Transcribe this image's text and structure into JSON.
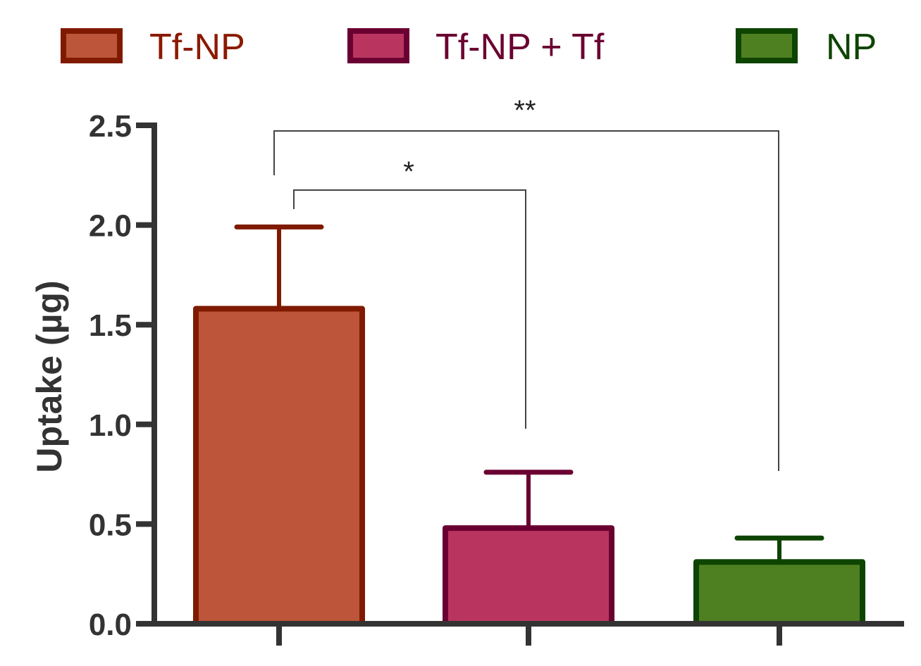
{
  "chart_data": {
    "type": "bar",
    "categories": [
      "Tf-NP",
      "Tf-NP + Tf",
      "NP"
    ],
    "values": [
      1.58,
      0.48,
      0.31
    ],
    "errors": [
      0.41,
      0.28,
      0.12
    ],
    "ylabel": "Uptake (µg)",
    "xlabel": "",
    "ylim": [
      0,
      2.5
    ],
    "yticks": [
      0.0,
      0.5,
      1.0,
      1.5,
      2.0,
      2.5
    ],
    "ytick_labels": [
      "0.0",
      "0.5",
      "1.0",
      "1.5",
      "2.0",
      "2.5"
    ],
    "grid": false,
    "legend_position": "top",
    "legend": [
      {
        "label": "Tf-NP",
        "fill": "#BC5539",
        "stroke": "#7F1A00",
        "text_color": "#8B1A00"
      },
      {
        "label": "Tf-NP + Tf",
        "fill": "#B93560",
        "stroke": "#6A0031",
        "text_color": "#6A0031"
      },
      {
        "label": "NP",
        "fill": "#4E7F21",
        "stroke": "#0D4400",
        "text_color": "#0D4400"
      }
    ],
    "significance": [
      {
        "from": 0,
        "to": 1,
        "label": "*"
      },
      {
        "from": 0,
        "to": 2,
        "label": "**"
      }
    ]
  }
}
